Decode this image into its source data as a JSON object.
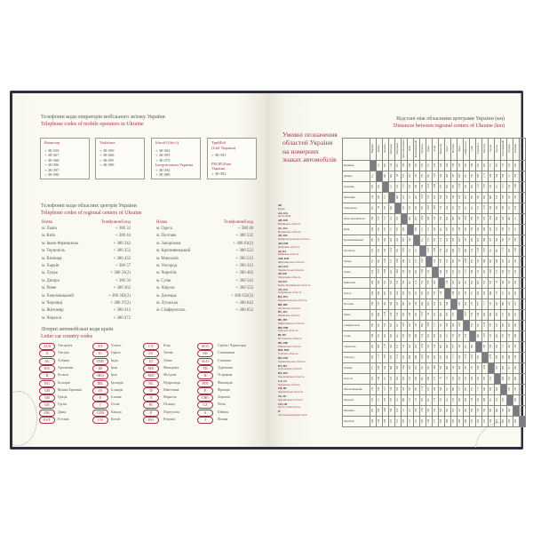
{
  "left_page": {
    "mobile": {
      "title_ua": "Телефонні коди операторів мобільного зв'язку України",
      "title_en": "Telephone codes of mobile operators in Ukraine",
      "operators": [
        {
          "name": "Київстар",
          "codes": [
            "+ 38 039",
            "+ 38 067",
            "+ 38 068",
            "+ 38 096",
            "+ 38 097",
            "+ 38 098"
          ]
        },
        {
          "name": "Vodafone",
          "codes": [
            "+ 38 050",
            "+ 38 066",
            "+ 38 095",
            "+ 38 099"
          ]
        },
        {
          "name": "lifecell (life:))",
          "codes": [
            "+ 38 063",
            "+ 38 093",
            "+ 38 073"
          ],
          "sub_name": "Інтертелеком Україна",
          "sub_codes": [
            "+ 38 094",
            "+ 38 089"
          ]
        },
        {
          "name": "ТриМоб",
          "name2": "(Utel Україна)",
          "codes": [
            "+ 38 091"
          ],
          "sub_name": "PEOPLEnet",
          "sub_name2": "Україна",
          "sub_codes": [
            "+ 38 092"
          ]
        }
      ]
    },
    "regional": {
      "title_ua": "Телефонні коди обласних центрів України",
      "title_en": "Telephone codes of regional centers of Ukraine",
      "header_name": "Назва",
      "header_code": "Телефонний код",
      "col1": [
        [
          "м. Львів",
          "+ 380 32"
        ],
        [
          "м. Київ",
          "+ 380 44"
        ],
        [
          "м. Івано-Франківськ",
          "+ 380 342"
        ],
        [
          "м. Тернопіль",
          "+ 380 352"
        ],
        [
          "м. Вінниця",
          "+ 380 432"
        ],
        [
          "м. Харків",
          "+ 380 57"
        ],
        [
          "м. Луцьк",
          "+ 380 33(2)"
        ],
        [
          "м. Дніпро",
          "+ 380 56"
        ],
        [
          "м. Рівне",
          "+ 380 362"
        ],
        [
          "м. Хмельницький",
          "+ 380 382(2)"
        ],
        [
          "м. Чернівці",
          "+ 380 37(2)"
        ],
        [
          "м. Житомир",
          "+ 380 412"
        ],
        [
          "м. Черкаси",
          "+ 380 472"
        ]
      ],
      "col2": [
        [
          "м. Одеса",
          "+ 380 48"
        ],
        [
          "м. Полтава",
          "+ 380 532"
        ],
        [
          "м. Запоріжжя",
          "+ 380 61(2)"
        ],
        [
          "м. Кропивницький",
          "+ 380 522"
        ],
        [
          "м. Миколаїв",
          "+ 380 512"
        ],
        [
          "м. Ужгород",
          "+ 380 312"
        ],
        [
          "м. Чернігів",
          "+ 380 462"
        ],
        [
          "м. Суми",
          "+ 380 542"
        ],
        [
          "м. Херсон",
          "+ 380 552"
        ],
        [
          "м. Донецьк",
          "+ 380 622(3)"
        ],
        [
          "м. Луганськ",
          "+ 380 642"
        ],
        [
          "м. Сімферополь",
          "+ 380 652"
        ]
      ]
    },
    "car_codes": {
      "title_ua": "Літерні автомобільні коди країн",
      "title_en": "Letter car country codes",
      "columns": [
        [
          [
            "AUS",
            "Австралія"
          ],
          [
            "A",
            "Австрія"
          ],
          [
            "AL",
            "Албанія"
          ],
          [
            "RA",
            "Аргентина"
          ],
          [
            "B",
            "Бельгія"
          ],
          [
            "BG",
            "Болгарія"
          ],
          [
            "GB",
            "Велика Британія"
          ],
          [
            "GR",
            "Греція"
          ],
          [
            "GE",
            "Грузія"
          ],
          [
            "DK",
            "Данія"
          ],
          [
            "EST",
            "Естонія"
          ]
        ],
        [
          [
            "ET",
            "Єгипет"
          ],
          [
            "IL",
            "Ізраїль"
          ],
          [
            "IND",
            "Індія"
          ],
          [
            "IR",
            "Іран"
          ],
          [
            "IRQ",
            "Ірак"
          ],
          [
            "IRL",
            "Ірландія"
          ],
          [
            "IS",
            "Ісландія"
          ],
          [
            "E",
            "Іспанія"
          ],
          [
            "I",
            "Італія"
          ],
          [
            "CDN",
            "Канада"
          ],
          [
            "CN",
            "Китай"
          ]
        ],
        [
          [
            "CY",
            "Кіпр"
          ],
          [
            "LV",
            "Латвія"
          ],
          [
            "LT",
            "Литва"
          ],
          [
            "MK",
            "Македонія"
          ],
          [
            "MD",
            "Молдова"
          ],
          [
            "NL",
            "Нідерланди"
          ],
          [
            "D",
            "Німеччина"
          ],
          [
            "N",
            "Норвегія"
          ],
          [
            "PL",
            "Польща"
          ],
          [
            "P",
            "Португалія"
          ],
          [
            "RO",
            "Румунія"
          ]
        ],
        [
          [
            "SCG",
            "Сербія і Чорногорія"
          ],
          [
            "SK",
            "Словаччина"
          ],
          [
            "SLO",
            "Словенія"
          ],
          [
            "TR",
            "Туреччина"
          ],
          [
            "H",
            "Угорщина"
          ],
          [
            "FIN",
            "Фінляндія"
          ],
          [
            "F",
            "Франція"
          ],
          [
            "CRO",
            "Хорватія"
          ],
          [
            "CZ",
            "Чехія"
          ],
          [
            "S",
            "Швеція"
          ],
          [
            "J",
            "Японія"
          ]
        ]
      ]
    }
  },
  "right_page": {
    "distances": {
      "title_ua": "Відстані між обласними центрами України (км)",
      "title_en": "Distances between regional centers of Ukraine (km)",
      "cities": [
        "Вінниця",
        "Дніпро",
        "Донецьк",
        "Житомир",
        "Запоріжжя",
        "Івано-Франківськ",
        "Київ",
        "Кропивницький",
        "Луганськ",
        "Луцьк",
        "Львів",
        "Миколаїв",
        "Одеса",
        "Полтава",
        "Рівне",
        "Сімферополь",
        "Суми",
        "Тернопіль",
        "Ужгород",
        "Харків",
        "Херсон",
        "Хмельницький",
        "Черкаси",
        "Чернівці",
        "Чернігів"
      ],
      "lower_triangle": [
        [],
        [
          611
        ],
        [
          873,
          262
        ],
        [
          144,
          649,
          911
        ],
        [
          651,
          86,
          239,
          689
        ],
        [
          340,
          918,
          1181,
          412,
          959
        ],
        [
          268,
          479,
          727,
          131,
          557,
          603
        ],
        [
          367,
          243,
          506,
          405,
          284,
          675,
          300
        ],
        [
          972,
          373,
          160,
          1010,
          399,
          1280,
          811,
          611
        ],
        [
          351,
          962,
          1224,
          313,
          1002,
          266,
          413,
          719,
          1323
        ],
        [
          416,
          1027,
          1288,
          422,
          1067,
          148,
          540,
          784,
          1388,
          165
        ],
        [
          426,
          344,
          557,
          554,
          318,
          734,
          481,
          214,
          716,
          778,
          843
        ],
        [
          444,
          480,
          693,
          575,
          454,
          650,
          475,
          323,
          853,
          755,
          758,
          136
        ],
        [
          546,
          167,
          365,
          546,
          253,
          887,
          343,
          256,
          464,
          859,
          924,
          437,
          546
        ],
        [
          265,
          876,
          1138,
          228,
          916,
          280,
          326,
          633,
          1237,
          86,
          233,
          692,
          707,
          773
        ],
        [
          765,
          501,
          535,
          895,
          421,
          1023,
          872,
          537,
          662,
          1076,
          1131,
          341,
          374,
          634,
          1027
        ],
        [
          638,
          335,
          492,
          567,
          421,
          978,
          350,
          408,
          514,
          827,
          988,
          623,
          731,
          185,
          754,
          818
        ],
        [
          265,
          876,
          1139,
          302,
          917,
          134,
          420,
          633,
          1238,
          169,
          128,
          692,
          608,
          777,
          166,
          981,
          869
        ],
        [
          565,
          1112,
          1373,
          637,
          1152,
          290,
          806,
          868,
          1473,
          388,
          265,
          927,
          842,
          1111,
          449,
          1216,
          1203,
          333
        ],
        [
          713,
          246,
          320,
          668,
          326,
          1054,
          478,
          423,
          341,
          982,
          1063,
          550,
          664,
          142,
          896,
          747,
          183,
          944,
          1278
        ],
        [
          497,
          326,
          521,
          618,
          282,
          804,
          535,
          260,
          681,
          848,
          913,
          70,
          172,
          459,
          762,
          277,
          645,
          762,
          998,
          573
        ],
        [
          120,
          748,
          1011,
          188,
          788,
          224,
          358,
          505,
          1110,
          233,
          240,
          564,
          521,
          663,
          195,
          853,
          755,
          112,
          449,
          830,
          634
        ],
        [
          323,
          311,
          574,
          337,
          351,
          663,
          192,
          132,
          673,
          651,
          716,
          332,
          441,
          224,
          565,
          670,
          316,
          565,
          888,
          391,
          392,
          439
        ],
        [
          267,
          796,
          1040,
          356,
          818,
          141,
          531,
          558,
          1169,
          349,
          274,
          594,
          509,
          813,
          322,
          882,
          906,
          180,
          334,
          980,
          664,
          187,
          589
        ],
        [
          400,
          534,
          748,
          295,
          619,
          707,
          141,
          431,
          847,
          556,
          717,
          628,
          688,
          383,
          484,
          968,
          333,
          598,
          932,
          506,
          692,
          483,
          300,
          634
        ]
      ]
    },
    "plates": {
      "title": "Умовні позначення областей України на номерних знаках автомобілів",
      "items": [
        [
          "AP",
          "Крим"
        ],
        [
          "AA, KA",
          "місто Київ"
        ],
        [
          "AB, KB",
          "Вінницька область"
        ],
        [
          "AC, KC",
          "Волинська область"
        ],
        [
          "AE, KE",
          "Дніпропетровська область"
        ],
        [
          "AH, KH",
          "Донецька область"
        ],
        [
          "AI, KI",
          "Київська область"
        ],
        [
          "AM, KM",
          "Житомирська область"
        ],
        [
          "AO, KO",
          "Закарпатська область"
        ],
        [
          "AP, KP",
          "Запорізька область"
        ],
        [
          "AT, KT",
          "Івано-Франківська область"
        ],
        [
          "AX, KX",
          "Харківська область"
        ],
        [
          "BA, HA",
          "Кіровоградська область"
        ],
        [
          "BB, HB",
          "Луганська область"
        ],
        [
          "BC, HC",
          "Львівська область"
        ],
        [
          "BE, HE",
          "Миколаївська область"
        ],
        [
          "BH, HH",
          "Одеська область"
        ],
        [
          "BI, HI",
          "Полтавська область"
        ],
        [
          "BK, HK",
          "Рівненська область"
        ],
        [
          "BM, HM",
          "Сумська область"
        ],
        [
          "BO, HO",
          "Тернопільська область"
        ],
        [
          "BT, HT",
          "Херсонська область"
        ],
        [
          "BX, HX",
          "Хмельницька область"
        ],
        [
          "CA, IA",
          "Черкаська область"
        ],
        [
          "CB, IB",
          "Чернігівська область"
        ],
        [
          "CE, IE",
          "Чернівецька область"
        ],
        [
          "CH, IH",
          "місто Севастополь"
        ],
        [
          "II",
          "Загальнодержавна серія"
        ]
      ]
    }
  },
  "colors": {
    "accent": "#a3324f",
    "text": "#555555",
    "cover": "#2b2f3a",
    "paper": "#fbfaf1",
    "diagonal": "#7a7c82"
  }
}
